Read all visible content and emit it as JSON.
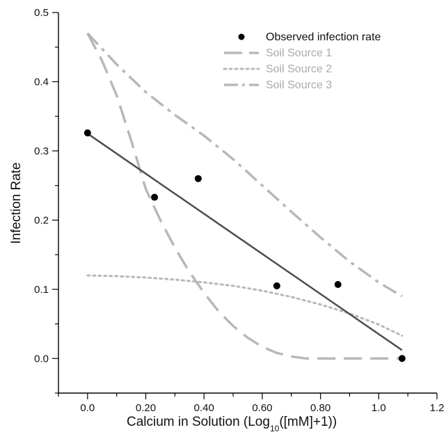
{
  "chart_data": {
    "type": "scatter",
    "xlabel_main": "Calcium in Solution (Log",
    "xlabel_sub": "10",
    "xlabel_tail": "([mM]+1))",
    "ylabel": "Infection Rate",
    "xlim": [
      -0.1,
      1.2
    ],
    "ylim": [
      -0.05,
      0.5
    ],
    "x_ticks": [
      0.0,
      0.2,
      0.4,
      0.6,
      0.8,
      1.0,
      1.2
    ],
    "x_tick_labels": [
      "0.0",
      "0.20",
      "0.40",
      "0.60",
      "0.80",
      "1.0",
      "1.2"
    ],
    "y_ticks": [
      0.0,
      0.1,
      0.2,
      0.3,
      0.4,
      0.5
    ],
    "y_tick_labels": [
      "0.0",
      "0.1",
      "0.2",
      "0.3",
      "0.4",
      "0.5"
    ],
    "legend_position": "top-right",
    "series": [
      {
        "name": "Observed infection rate",
        "kind": "points",
        "color": "#000000",
        "x": [
          0.0,
          0.23,
          0.38,
          0.65,
          0.86,
          1.08
        ],
        "y": [
          0.326,
          0.233,
          0.26,
          0.105,
          0.107,
          0.0
        ]
      },
      {
        "name": "Soil Source 1",
        "kind": "line",
        "style": "long-dash",
        "color": "#b8b8b8",
        "x": [
          0.0,
          0.05,
          0.1,
          0.15,
          0.2,
          0.25,
          0.3,
          0.35,
          0.4,
          0.45,
          0.5,
          0.55,
          0.6,
          0.65,
          0.7,
          0.75,
          0.8,
          0.9,
          1.0,
          1.08
        ],
        "y": [
          0.47,
          0.43,
          0.38,
          0.315,
          0.245,
          0.2,
          0.16,
          0.125,
          0.095,
          0.068,
          0.047,
          0.03,
          0.017,
          0.008,
          0.003,
          0.0,
          0.0,
          0.0,
          0.0,
          0.0
        ]
      },
      {
        "name": "Soil Source 2",
        "kind": "line",
        "style": "dotted",
        "color": "#b8b8b8",
        "x": [
          0.0,
          0.1,
          0.2,
          0.3,
          0.4,
          0.5,
          0.6,
          0.7,
          0.8,
          0.9,
          1.0,
          1.08
        ],
        "y": [
          0.12,
          0.119,
          0.117,
          0.114,
          0.11,
          0.105,
          0.098,
          0.089,
          0.078,
          0.065,
          0.049,
          0.033
        ]
      },
      {
        "name": "Soil Source 3",
        "kind": "line",
        "style": "dash-dot",
        "color": "#b8b8b8",
        "x": [
          0.0,
          0.1,
          0.2,
          0.3,
          0.4,
          0.5,
          0.6,
          0.7,
          0.8,
          0.9,
          1.0,
          1.08
        ],
        "y": [
          0.47,
          0.425,
          0.385,
          0.352,
          0.322,
          0.288,
          0.25,
          0.212,
          0.175,
          0.14,
          0.11,
          0.09
        ]
      },
      {
        "name": "",
        "kind": "fit-line",
        "style": "solid",
        "color": "#4d4d4d",
        "x": [
          0.0,
          1.08
        ],
        "y": [
          0.325,
          0.012
        ]
      }
    ]
  }
}
